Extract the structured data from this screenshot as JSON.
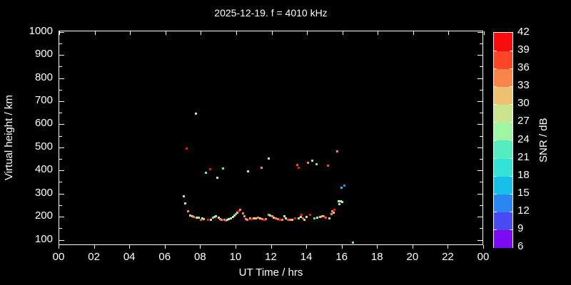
{
  "header": {
    "title": "2025-12-19. f = 4010 kHz"
  },
  "chart_data": {
    "type": "scatter",
    "title": "2025-12-19. f = 4010 kHz",
    "xlabel": "UT Time / hrs",
    "ylabel": "Virtual height / km",
    "xlim": [
      0,
      24
    ],
    "ylim": [
      74,
      1002
    ],
    "grid": false,
    "background": "#000000",
    "axis_color": "#ffffff",
    "xticks": {
      "values": [
        0,
        2,
        4,
        6,
        8,
        10,
        12,
        14,
        16,
        18,
        20,
        22,
        24
      ],
      "labels": [
        "00",
        "02",
        "04",
        "06",
        "08",
        "10",
        "12",
        "14",
        "16",
        "18",
        "20",
        "22",
        "00"
      ]
    },
    "yticks": {
      "values": [
        100,
        200,
        300,
        400,
        500,
        600,
        700,
        800,
        900,
        1000
      ]
    },
    "yminor_values": [
      150,
      250,
      350,
      450,
      550,
      650,
      750,
      850,
      950
    ],
    "colorbar": {
      "label": "SNR / dB",
      "min": 6,
      "max": 42,
      "tick_values": [
        6,
        9,
        12,
        15,
        18,
        21,
        24,
        27,
        30,
        33,
        36,
        39,
        42
      ],
      "segment_colors_low_to_high": [
        "#7b0af5",
        "#4a4af5",
        "#2a87f2",
        "#17c0e6",
        "#35e3d6",
        "#55edbf",
        "#a0f5a5",
        "#c9e48d",
        "#efbf72",
        "#f9854a",
        "#fb4526",
        "#f80c0c"
      ]
    },
    "points_format": [
      "ut_hours",
      "virtual_height_km",
      "snr_db"
    ],
    "points": [
      [
        7.02,
        288,
        25
      ],
      [
        7.11,
        258,
        28
      ],
      [
        7.19,
        495,
        41
      ],
      [
        7.27,
        222,
        34
      ],
      [
        7.39,
        206,
        31
      ],
      [
        7.51,
        203,
        31
      ],
      [
        7.6,
        199,
        34
      ],
      [
        7.71,
        645,
        29
      ],
      [
        7.76,
        196,
        26
      ],
      [
        7.88,
        196,
        28
      ],
      [
        8.0,
        188,
        37
      ],
      [
        8.08,
        194,
        25
      ],
      [
        8.16,
        191,
        31
      ],
      [
        8.28,
        391,
        22
      ],
      [
        8.4,
        185,
        41
      ],
      [
        8.53,
        404,
        40
      ],
      [
        8.57,
        188,
        25
      ],
      [
        8.69,
        197,
        19
      ],
      [
        8.77,
        200,
        31
      ],
      [
        8.85,
        203,
        28
      ],
      [
        8.93,
        367,
        28
      ],
      [
        9.01,
        197,
        28
      ],
      [
        9.09,
        191,
        34
      ],
      [
        9.17,
        188,
        34
      ],
      [
        9.25,
        407,
        22
      ],
      [
        9.33,
        185,
        34
      ],
      [
        9.41,
        182,
        37
      ],
      [
        9.49,
        188,
        25
      ],
      [
        9.58,
        191,
        27
      ],
      [
        9.7,
        194,
        25
      ],
      [
        9.82,
        200,
        28
      ],
      [
        9.9,
        206,
        27
      ],
      [
        9.98,
        212,
        19
      ],
      [
        10.06,
        218,
        31
      ],
      [
        10.14,
        224,
        40
      ],
      [
        10.22,
        229,
        34
      ],
      [
        10.38,
        215,
        34
      ],
      [
        10.46,
        203,
        34
      ],
      [
        10.54,
        191,
        34
      ],
      [
        10.63,
        185,
        34
      ],
      [
        10.67,
        395,
        28
      ],
      [
        10.79,
        194,
        31
      ],
      [
        10.87,
        191,
        40
      ],
      [
        10.99,
        194,
        31
      ],
      [
        11.11,
        194,
        31
      ],
      [
        11.23,
        197,
        34
      ],
      [
        11.35,
        194,
        31
      ],
      [
        11.43,
        413,
        34
      ],
      [
        11.47,
        191,
        34
      ],
      [
        11.6,
        188,
        40
      ],
      [
        11.68,
        191,
        34
      ],
      [
        11.84,
        209,
        19
      ],
      [
        11.84,
        453,
        27
      ],
      [
        11.92,
        206,
        31
      ],
      [
        12.04,
        203,
        34
      ],
      [
        12.12,
        197,
        31
      ],
      [
        12.24,
        194,
        34
      ],
      [
        12.36,
        191,
        34
      ],
      [
        12.48,
        188,
        40
      ],
      [
        12.61,
        185,
        34
      ],
      [
        12.73,
        203,
        27
      ],
      [
        12.81,
        194,
        25
      ],
      [
        12.93,
        188,
        37
      ],
      [
        13.05,
        185,
        34
      ],
      [
        13.17,
        188,
        31
      ],
      [
        13.33,
        194,
        40
      ],
      [
        13.45,
        425,
        37
      ],
      [
        13.54,
        194,
        25
      ],
      [
        13.54,
        413,
        40
      ],
      [
        13.66,
        200,
        25
      ],
      [
        13.7,
        209,
        40
      ],
      [
        13.78,
        194,
        37
      ],
      [
        13.86,
        188,
        31
      ],
      [
        13.98,
        200,
        28
      ],
      [
        14.06,
        432,
        34
      ],
      [
        14.18,
        209,
        40
      ],
      [
        14.3,
        441,
        26
      ],
      [
        14.42,
        194,
        19
      ],
      [
        14.55,
        428,
        22
      ],
      [
        14.59,
        197,
        25
      ],
      [
        14.75,
        200,
        31
      ],
      [
        14.87,
        203,
        31
      ],
      [
        14.95,
        203,
        34
      ],
      [
        15.07,
        197,
        37
      ],
      [
        15.19,
        421,
        37
      ],
      [
        15.27,
        194,
        31
      ],
      [
        15.39,
        212,
        34
      ],
      [
        15.43,
        225,
        34
      ],
      [
        15.51,
        218,
        31
      ],
      [
        15.55,
        231,
        40
      ],
      [
        15.7,
        481,
        34
      ],
      [
        15.8,
        268,
        26
      ],
      [
        15.84,
        253,
        27
      ],
      [
        15.92,
        268,
        28
      ],
      [
        15.95,
        326,
        16
      ],
      [
        16.0,
        265,
        27
      ],
      [
        16.11,
        335,
        13
      ],
      [
        16.59,
        88,
        22
      ]
    ]
  }
}
